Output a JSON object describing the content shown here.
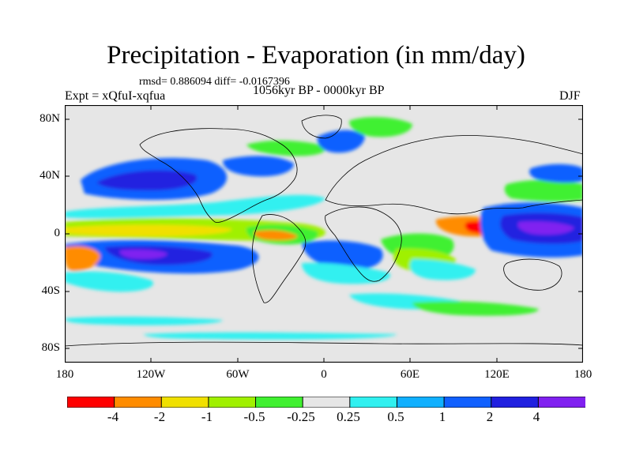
{
  "title": "Precipitation - Evaporation (in mm/day)",
  "stats": "rmsd= 0.886094 diff= -0.0167396",
  "period": "1056kyr BP - 0000kyr BP",
  "experiment": "Expt = xQfuI-xqfua",
  "season": "DJF",
  "map": {
    "projection": "cylindrical equidistant",
    "lat_ticks": [
      "80N",
      "40N",
      "0",
      "40S",
      "80S"
    ],
    "lon_ticks": [
      "180",
      "120W",
      "60W",
      "0",
      "60E",
      "120E",
      "180"
    ],
    "land_color": "#e6e6e6"
  },
  "colorbar": {
    "colors": [
      "#ff0000",
      "#ff8c00",
      "#f0e000",
      "#a0f000",
      "#40f030",
      "#e6e6e6",
      "#30f0f0",
      "#10b0ff",
      "#1060ff",
      "#2020e0",
      "#8020f0"
    ],
    "labels": [
      "-4",
      "-2",
      "-1",
      "-0.5",
      "-0.25",
      "0.25",
      "0.5",
      "1",
      "2",
      "4"
    ]
  }
}
